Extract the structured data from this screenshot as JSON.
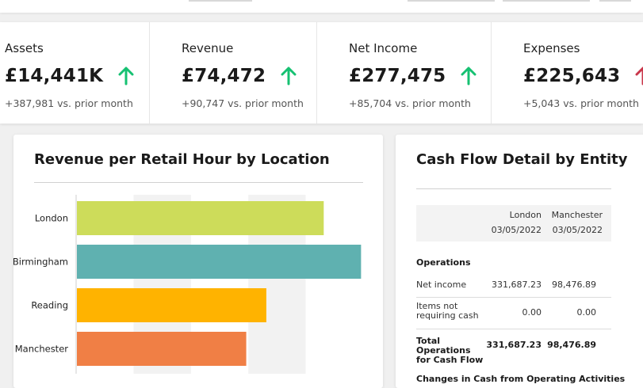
{
  "kpis": [
    {
      "label": "Assets",
      "value": "£14,441K",
      "trend": "up",
      "sub": "+387,981 vs. prior month"
    },
    {
      "label": "Revenue",
      "value": "£74,472",
      "trend": "up",
      "sub": "+90,747 vs. prior month"
    },
    {
      "label": "Net Income",
      "value": "£277,475",
      "trend": "up",
      "sub": "+85,704 vs. prior month"
    },
    {
      "label": "Expenses",
      "value": "£225,643",
      "trend": "up-red",
      "sub": "+5,043 vs. prior month"
    }
  ],
  "colors": {
    "up_arrow": "#16c172",
    "expense_arrow": "#c9364a",
    "bar_london": "#cddc5a",
    "bar_birmingham": "#5fb1b0",
    "bar_reading": "#ffb300",
    "bar_manchester": "#f07f45"
  },
  "revenue_card": {
    "title": "Revenue per Retail Hour by Location"
  },
  "chart_data": {
    "type": "bar",
    "orientation": "horizontal",
    "categories": [
      "London",
      "Birmingham",
      "Reading",
      "Manchester"
    ],
    "values": [
      4.3,
      4.95,
      3.3,
      2.95
    ],
    "xlim": [
      0,
      5
    ],
    "grid": "alternating vertical bands",
    "colors": [
      "#cddc5a",
      "#5fb1b0",
      "#ffb300",
      "#f07f45"
    ],
    "title": "Revenue per Retail Hour by Location"
  },
  "cashflow_card": {
    "title": "Cash Flow Detail by Entity",
    "columns": [
      {
        "entity": "London",
        "date": "03/05/2022"
      },
      {
        "entity": "Manchester",
        "date": "03/05/2022"
      }
    ],
    "section_title": "Operations",
    "rows": [
      {
        "label": "Net income",
        "values": [
          "331,687.23",
          "98,476.89"
        ],
        "bold": false
      },
      {
        "label": "Items not requiring cash",
        "values": [
          "0.00",
          "0.00"
        ],
        "bold": false
      },
      {
        "label": "Total Operations for Cash Flow",
        "values": [
          "331,687.23",
          "98,476.89"
        ],
        "bold": true
      }
    ],
    "next_section": "Changes in Cash from Operating Activities"
  }
}
